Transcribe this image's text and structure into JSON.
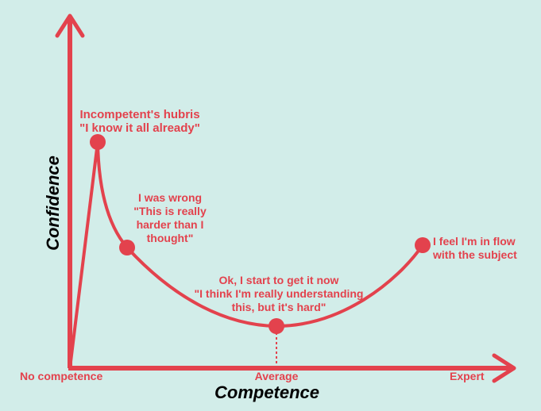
{
  "colors": {
    "background": "#d2ede9",
    "accent": "#e3424d",
    "axis_title": "#000000"
  },
  "axes": {
    "x_title": "Competence",
    "y_title": "Confidence",
    "x_ticks": {
      "start": "No competence",
      "middle": "Average",
      "end": "Expert"
    }
  },
  "annotations": {
    "peak": "Incompetent's hubris\n\"I know it all already\"",
    "wrong": "I was wrong\n\"This is really\nharder than I\nthought\"",
    "understanding": "Ok, I start to get it now\n\"I think I'm really understanding\nthis, but it's hard\"",
    "flow": "I feel I'm in flow\nwith the subject"
  }
}
